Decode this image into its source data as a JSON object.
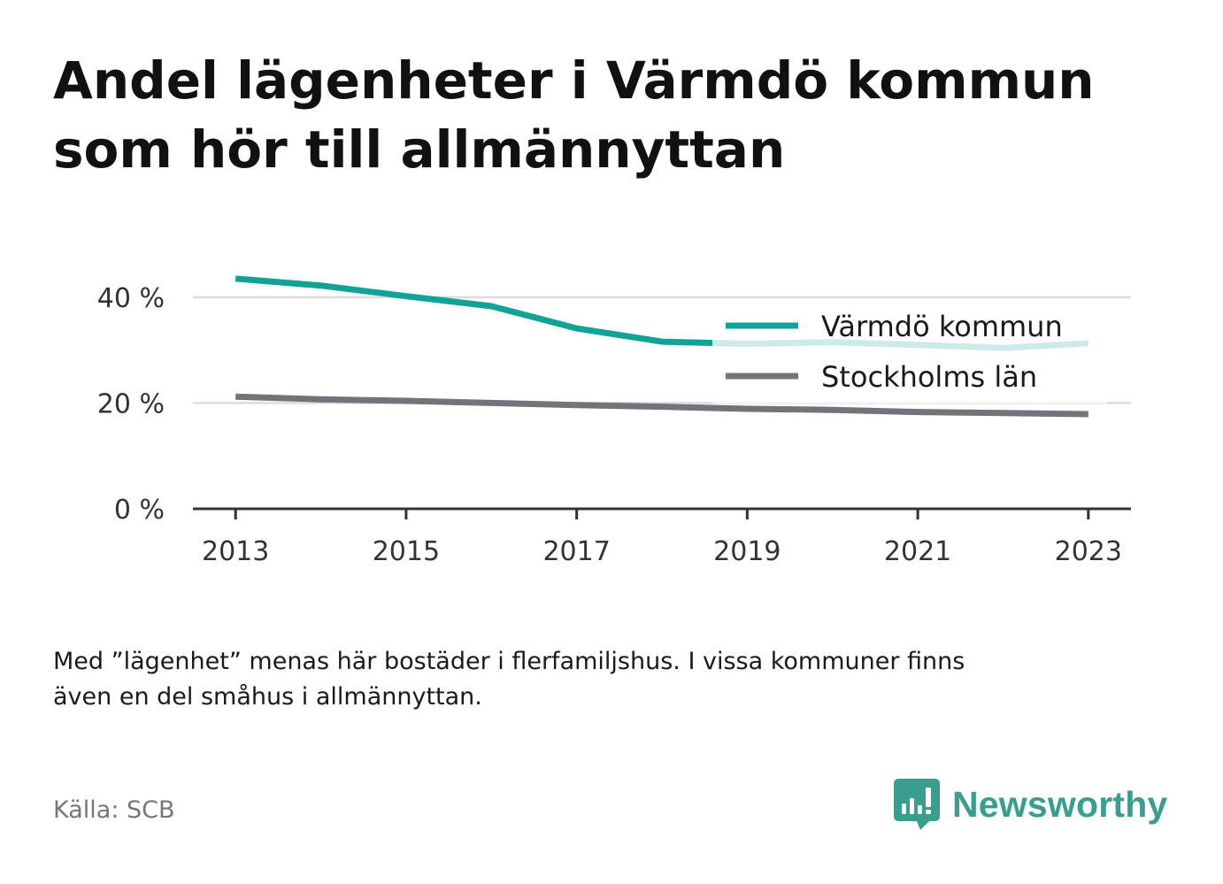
{
  "title": {
    "line1": "Andel lägenheter i Värmdö kommun",
    "line2": "som hör till allmännyttan"
  },
  "note": {
    "line1": "Med ”lägenhet” menas här bostäder i flerfamiljshus. I vissa kommuner finns",
    "line2": "även en del småhus i allmännyttan."
  },
  "source": "Källa: SCB",
  "logo": {
    "text": "Newsworthy",
    "icon": "newsworthy-logo-icon",
    "color": "#3a9e8e"
  },
  "chart_data": {
    "type": "line",
    "x": [
      2013,
      2014,
      2015,
      2016,
      2017,
      2018,
      2019,
      2020,
      2021,
      2022,
      2023
    ],
    "x_ticks": [
      "2013",
      "2015",
      "2017",
      "2019",
      "2021",
      "2023"
    ],
    "y_ticks": [
      "0 %",
      "20 %",
      "40 %"
    ],
    "y_tick_values": [
      0,
      20,
      40
    ],
    "ylim": [
      0,
      46
    ],
    "xlim": [
      2012.5,
      2023.5
    ],
    "grid": true,
    "legend_position": "top-right",
    "series": [
      {
        "name": "Värmdö kommun",
        "color": "#12a397",
        "values": [
          43.5,
          42.2,
          40.2,
          38.3,
          34.1,
          31.6,
          31.2,
          31.5,
          31.0,
          30.4,
          31.3
        ]
      },
      {
        "name": "Stockholms län",
        "color": "#74737b",
        "values": [
          21.2,
          20.7,
          20.4,
          20.0,
          19.6,
          19.3,
          18.9,
          18.7,
          18.3,
          18.1,
          17.9
        ]
      }
    ]
  }
}
